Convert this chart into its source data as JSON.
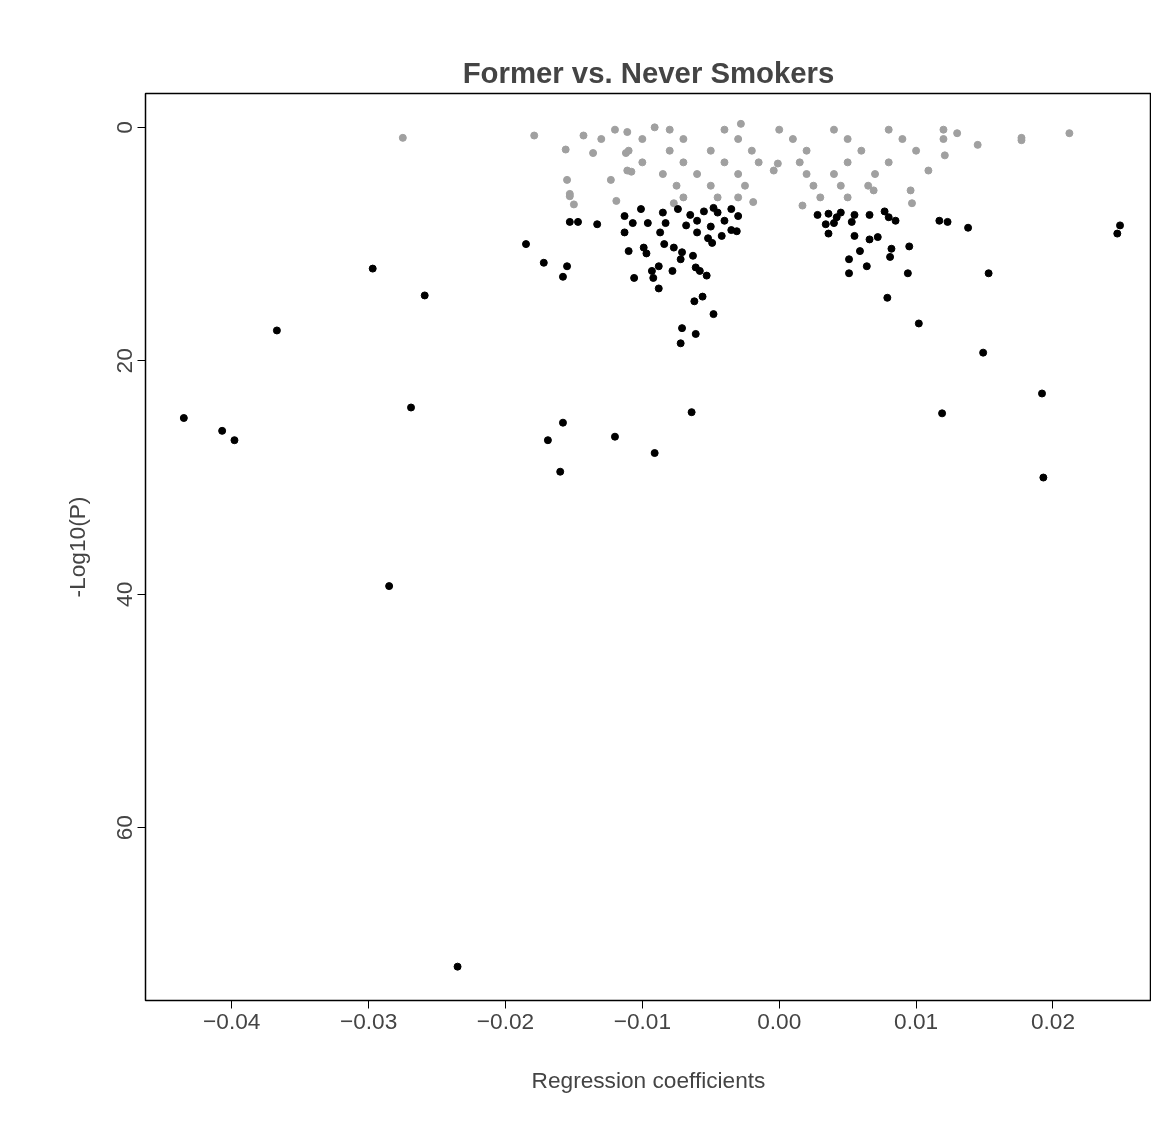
{
  "chart_data": {
    "type": "scatter",
    "title": "Former vs. Never Smokers",
    "xlabel": "Regression coefficients",
    "ylabel": "-Log10(P)",
    "xlim": [
      -0.0463,
      0.0272
    ],
    "ylim": [
      74.8,
      -2.9
    ],
    "xticks": [
      -0.04,
      -0.03,
      -0.02,
      -0.01,
      {
        "value": 0,
        "label": "0.00"
      },
      0.01,
      0.02
    ],
    "yticks": [
      0,
      20,
      40,
      60
    ],
    "grid": false,
    "marker": "circle",
    "series": [
      {
        "color": "#a0a0a0",
        "x": [
          -0.0275,
          -0.0179,
          -0.0156,
          -0.0155,
          -0.0153,
          -0.015,
          -0.0123,
          -0.0119,
          -0.0108,
          -0.0112,
          0.0177,
          0.0212,
          0.0177,
          -0.0143,
          -0.0136,
          -0.0111,
          -0.0091,
          -0.0028,
          -0.0001,
          -0.0004,
          0.013,
          0.0145,
          0.0121,
          0.0109,
          0.0096,
          0.0097,
          0.0069,
          0.0017,
          -0.0019,
          -0.0077,
          -0.0111,
          -0.0153,
          -0.012,
          -0.008,
          -0.004,
          0,
          0.004,
          0.008,
          0.012,
          -0.013,
          -0.01,
          -0.007,
          -0.003,
          0.001,
          0.005,
          0.009,
          0.012,
          -0.011,
          -0.008,
          -0.005,
          -0.002,
          0.002,
          0.006,
          0.01,
          -0.01,
          -0.007,
          -0.004,
          -0.0015,
          0.0015,
          0.005,
          0.008,
          -0.0085,
          -0.006,
          -0.003,
          0.002,
          0.004,
          0.007,
          -0.0075,
          -0.005,
          -0.0025,
          0.0025,
          0.0045,
          0.0065,
          -0.007,
          -0.0045,
          -0.003,
          0.003,
          0.005
        ],
        "values": [
          0.9,
          0.7,
          1.9,
          4.5,
          5.9,
          6.6,
          4.5,
          6.3,
          3.8,
          2.2,
          1.1,
          0.5,
          0.9,
          0.7,
          2.2,
          0.4,
          0.0,
          -0.3,
          3.1,
          3.7,
          0.5,
          1.5,
          2.4,
          3.7,
          5.4,
          6.5,
          5.4,
          6.7,
          6.4,
          6.5,
          3.7,
          5.7,
          0.2,
          0.2,
          0.2,
          0.2,
          0.2,
          0.2,
          0.2,
          1,
          1,
          1,
          1,
          1,
          1,
          1,
          1,
          2,
          2,
          2,
          2,
          2,
          2,
          2,
          3,
          3,
          3,
          3,
          3,
          3,
          3,
          4,
          4,
          4,
          4,
          4,
          4,
          5,
          5,
          5,
          5,
          5,
          5,
          6,
          6,
          6,
          6,
          6
        ]
      },
      {
        "color": "#000000",
        "x": [
          -0.0435,
          -0.0407,
          -0.0398,
          -0.0367,
          -0.0297,
          -0.0285,
          -0.0269,
          -0.0259,
          -0.0235,
          -0.0185,
          -0.0172,
          -0.0169,
          -0.0158,
          -0.016,
          -0.0158,
          -0.0155,
          -0.012,
          -0.0091,
          -0.0064,
          -0.0072,
          -0.0071,
          -0.0061,
          -0.0062,
          -0.0056,
          -0.0048,
          -0.0153,
          -0.0147,
          -0.0133,
          -0.0113,
          -0.0113,
          -0.0107,
          -0.011,
          -0.0099,
          -0.0097,
          -0.0106,
          -0.0093,
          -0.0088,
          -0.0092,
          -0.0088,
          -0.0078,
          -0.0096,
          -0.0101,
          -0.0085,
          -0.0087,
          -0.0083,
          -0.0084,
          -0.0077,
          -0.0071,
          -0.0072,
          -0.0063,
          -0.0061,
          -0.0058,
          -0.0053,
          -0.0074,
          -0.0065,
          -0.006,
          -0.0055,
          -0.005,
          -0.0045,
          -0.004,
          -0.0035,
          -0.003,
          -0.006,
          -0.0052,
          -0.0042,
          -0.0035,
          -0.0068,
          -0.0048,
          -0.0049,
          -0.0031,
          0.0028,
          0.0036,
          0.0045,
          0.0042,
          0.0034,
          0.004,
          0.0036,
          0.0053,
          0.0055,
          0.0066,
          0.0077,
          0.008,
          0.0085,
          0.0117,
          0.0123,
          0.0138,
          0.0249,
          0.0247,
          0.0055,
          0.0066,
          0.0072,
          0.0059,
          0.0051,
          0.0051,
          0.0064,
          0.0082,
          0.0081,
          0.0095,
          0.0094,
          0.0153,
          0.0079,
          0.0102,
          0.0149,
          0.0119,
          0.0192,
          0.0193
        ],
        "values": [
          24.9,
          26.0,
          26.8,
          17.4,
          12.1,
          39.3,
          24.0,
          14.4,
          71.9,
          10.0,
          11.6,
          26.8,
          25.3,
          29.5,
          12.8,
          11.9,
          26.5,
          27.9,
          24.4,
          18.5,
          17.2,
          17.7,
          14.9,
          14.5,
          16.0,
          8.1,
          8.1,
          8.3,
          7.6,
          9.0,
          8.2,
          10.6,
          10.3,
          10.8,
          12.9,
          12.3,
          11.9,
          12.9,
          13.8,
          12.3,
          8.2,
          7.0,
          7.3,
          9.0,
          8.2,
          10.0,
          10.3,
          10.7,
          11.3,
          11.0,
          12.0,
          12.3,
          12.7,
          7.0,
          7.5,
          8.0,
          7.2,
          8.5,
          7.3,
          8.0,
          7.0,
          7.6,
          9.0,
          9.5,
          9.3,
          8.8,
          8.4,
          6.9,
          9.9,
          8.9,
          7.5,
          7.4,
          7.3,
          7.7,
          8.3,
          8.2,
          9.1,
          8.1,
          7.5,
          7.5,
          7.2,
          7.7,
          8.0,
          8.0,
          8.1,
          8.6,
          8.4,
          9.1,
          9.3,
          9.6,
          9.4,
          10.6,
          11.3,
          12.5,
          11.9,
          10.4,
          11.1,
          10.2,
          12.5,
          12.5,
          14.6,
          16.8,
          19.3,
          24.5,
          22.8,
          30.0
        ]
      }
    ]
  }
}
